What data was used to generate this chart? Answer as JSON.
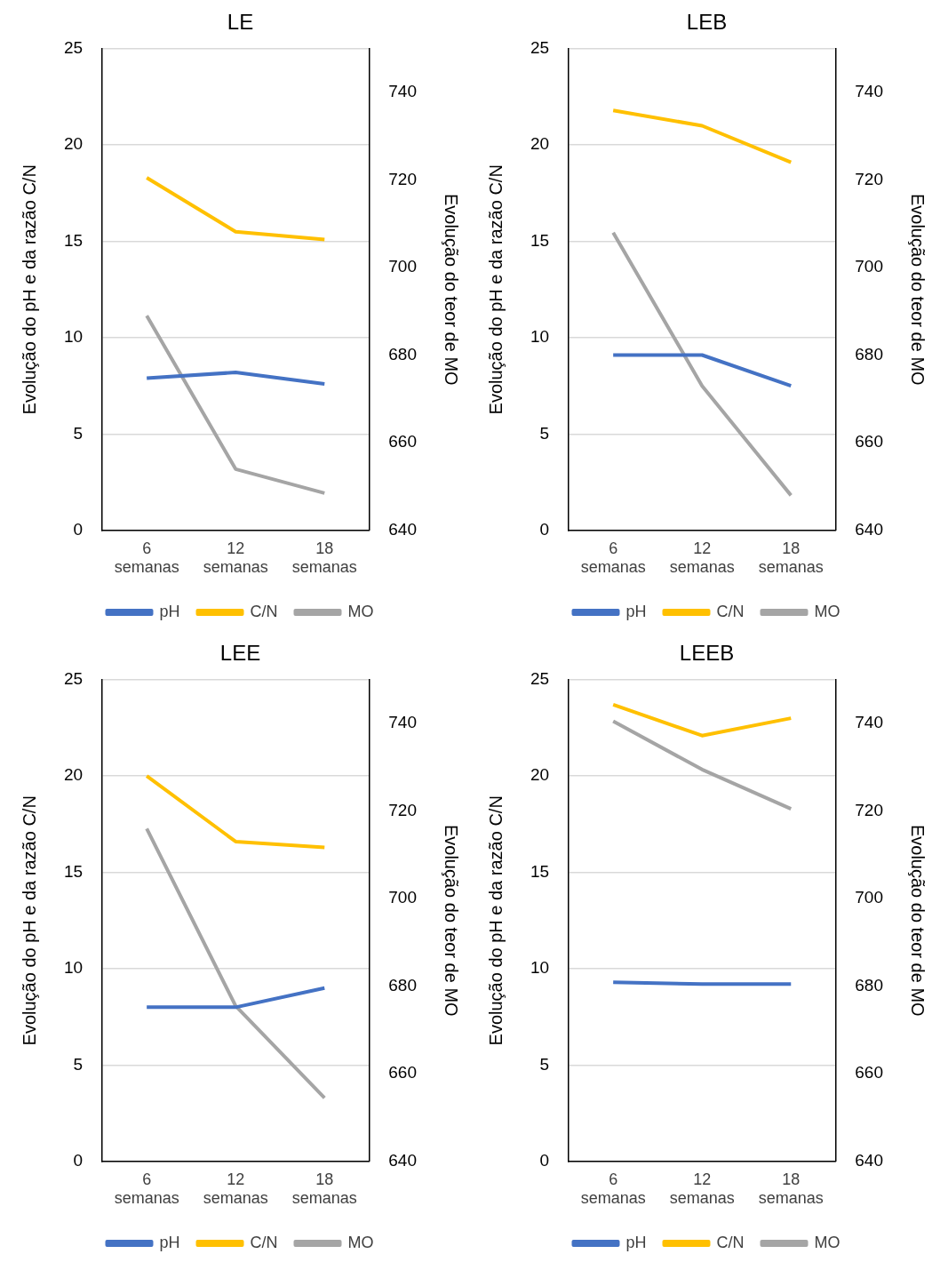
{
  "chart_data": [
    {
      "type": "line",
      "title": "LE",
      "categories": [
        "6 semanas",
        "12 semanas",
        "18 semanas"
      ],
      "ylabel": "Evolução do pH e da razão C/N",
      "y2label": "Evolução do teor de MO",
      "ylim": [
        0,
        25
      ],
      "yticks": [
        0,
        5,
        10,
        15,
        20,
        25
      ],
      "y2lim": [
        640,
        750
      ],
      "y2ticks": [
        640,
        660,
        680,
        700,
        720,
        740
      ],
      "grid": "y",
      "legend": "bottom",
      "series": [
        {
          "name": "pH",
          "color": "#4472c4",
          "values": [
            7.9,
            8.2,
            7.6
          ]
        },
        {
          "name": "C/N",
          "color": "#ffc000",
          "values": [
            18.3,
            15.5,
            15.1
          ]
        },
        {
          "name": "MO",
          "color": "#a5a5a5",
          "axis": "y2",
          "values": [
            689,
            654,
            648.5
          ]
        }
      ]
    },
    {
      "type": "line",
      "title": "LEB",
      "categories": [
        "6 semanas",
        "12 semanas",
        "18 semanas"
      ],
      "ylabel": "Evolução do pH e da razão C/N",
      "y2label": "Evolução do teor de MO",
      "ylim": [
        0,
        25
      ],
      "yticks": [
        0,
        5,
        10,
        15,
        20,
        25
      ],
      "y2lim": [
        640,
        750
      ],
      "y2ticks": [
        640,
        660,
        680,
        700,
        720,
        740
      ],
      "grid": "y",
      "legend": "bottom",
      "series": [
        {
          "name": "pH",
          "color": "#4472c4",
          "values": [
            9.1,
            9.1,
            7.5
          ]
        },
        {
          "name": "C/N",
          "color": "#ffc000",
          "values": [
            21.8,
            21,
            19.1
          ]
        },
        {
          "name": "MO",
          "color": "#a5a5a5",
          "axis": "y2",
          "values": [
            708,
            673,
            648
          ]
        }
      ]
    },
    {
      "type": "line",
      "title": "LEE",
      "categories": [
        "6 semanas",
        "12 semanas",
        "18 semanas"
      ],
      "ylabel": "Evolução do pH e da razão C/N",
      "y2label": "Evolução do teor de MO",
      "ylim": [
        0,
        25
      ],
      "yticks": [
        0,
        5,
        10,
        15,
        20,
        25
      ],
      "y2lim": [
        640,
        750
      ],
      "y2ticks": [
        640,
        660,
        680,
        700,
        720,
        740
      ],
      "grid": "y",
      "legend": "bottom",
      "series": [
        {
          "name": "pH",
          "color": "#4472c4",
          "values": [
            8,
            8,
            9
          ]
        },
        {
          "name": "C/N",
          "color": "#ffc000",
          "values": [
            20,
            16.6,
            16.3
          ]
        },
        {
          "name": "MO",
          "color": "#a5a5a5",
          "axis": "y2",
          "values": [
            716,
            675.5,
            654.5
          ]
        }
      ]
    },
    {
      "type": "line",
      "title": "LEEB",
      "categories": [
        "6 semanas",
        "12 semanas",
        "18 semanas"
      ],
      "ylabel": "Evolução do pH e da razão C/N",
      "y2label": "Evolução do teor de MO",
      "ylim": [
        0,
        25
      ],
      "yticks": [
        0,
        5,
        10,
        15,
        20,
        25
      ],
      "y2lim": [
        640,
        750
      ],
      "y2ticks": [
        640,
        660,
        680,
        700,
        720,
        740
      ],
      "grid": "y",
      "legend": "bottom",
      "series": [
        {
          "name": "pH",
          "color": "#4472c4",
          "values": [
            9.3,
            9.2,
            9.2
          ]
        },
        {
          "name": "C/N",
          "color": "#ffc000",
          "values": [
            23.7,
            22.1,
            23
          ]
        },
        {
          "name": "MO",
          "color": "#a5a5a5",
          "axis": "y2",
          "values": [
            740.5,
            729.5,
            720.5
          ]
        }
      ]
    }
  ]
}
